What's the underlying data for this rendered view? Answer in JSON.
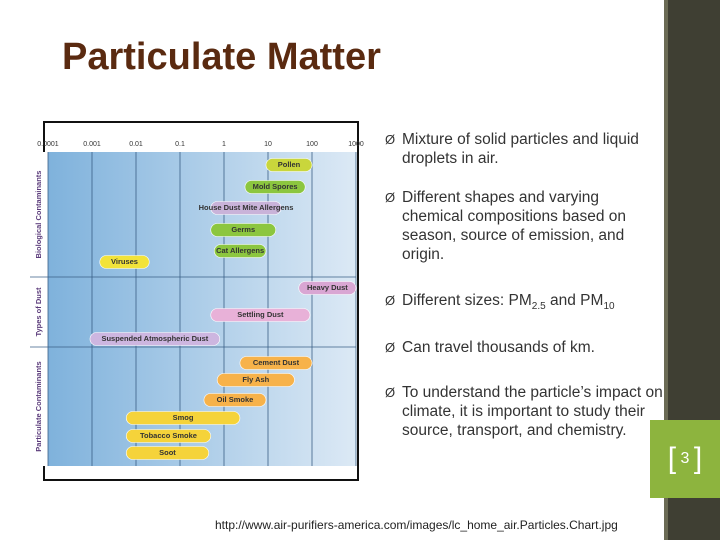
{
  "header": {
    "title": "Particulate Matter"
  },
  "figure": {
    "xlim": [
      0.0001,
      1000
    ],
    "xticks": [
      0.0001,
      0.001,
      0.01,
      0.1,
      1,
      10,
      100,
      1000
    ],
    "log_scale": true,
    "groups": [
      "Biological Contaminants",
      "Types of Dust",
      "Particulate Contaminants"
    ],
    "items": [
      {
        "label": "Pollen",
        "range": [
          9,
          100
        ],
        "color": "#c9d63c"
      },
      {
        "label": "Mold Spores",
        "range": [
          3,
          70
        ],
        "color": "#8cc63f"
      },
      {
        "label": "House Dust Mite Allergens",
        "range": [
          0.5,
          20
        ],
        "color": "#c9b3d9"
      },
      {
        "label": "Germs",
        "range": [
          0.5,
          15
        ],
        "color": "#8cc63f"
      },
      {
        "label": "Cat Allergens",
        "range": [
          0.6,
          9
        ],
        "color": "#8cc63f"
      },
      {
        "label": "Viruses",
        "range": [
          0.0015,
          0.02
        ],
        "color": "#f2e33a"
      },
      {
        "label": "Heavy Dust",
        "range": [
          50,
          1000
        ],
        "color": "#d9a6d3"
      },
      {
        "label": "Settling Dust",
        "range": [
          0.5,
          90
        ],
        "color": "#e8b1d8"
      },
      {
        "label": "Suspended Atmospheric Dust",
        "range": [
          0.0009,
          0.8
        ],
        "color": "#cdb6e0"
      },
      {
        "label": "Cement Dust",
        "range": [
          2.3,
          100
        ],
        "color": "#f7b24a"
      },
      {
        "label": "Fly Ash",
        "range": [
          0.7,
          40
        ],
        "color": "#f7b24a"
      },
      {
        "label": "Oil Smoke",
        "range": [
          0.35,
          9
        ],
        "color": "#f7b24a"
      },
      {
        "label": "Smog",
        "range": [
          0.006,
          2.3
        ],
        "color": "#f5d33a"
      },
      {
        "label": "Tobacco Smoke",
        "range": [
          0.006,
          0.5
        ],
        "color": "#f5d33a"
      },
      {
        "label": "Soot",
        "range": [
          0.006,
          0.45
        ],
        "color": "#f5d33a"
      }
    ]
  },
  "bullets": [
    [
      "Mixture of solid particles and liquid droplets in air."
    ],
    [
      "Different shapes and varying chemical compositions based on season, source of emission, and origin."
    ],
    [
      "Different sizes: PM",
      "2.5",
      " and PM",
      "10"
    ],
    [
      "Can travel thousands of km."
    ],
    [
      "To understand the particle’s impact on climate, it is important to study their source, transport, and chemistry."
    ]
  ],
  "source": "http://www.air-purifiers-america.com/images/lc_home_air.Particles.Chart.jpg",
  "page_number": "3"
}
